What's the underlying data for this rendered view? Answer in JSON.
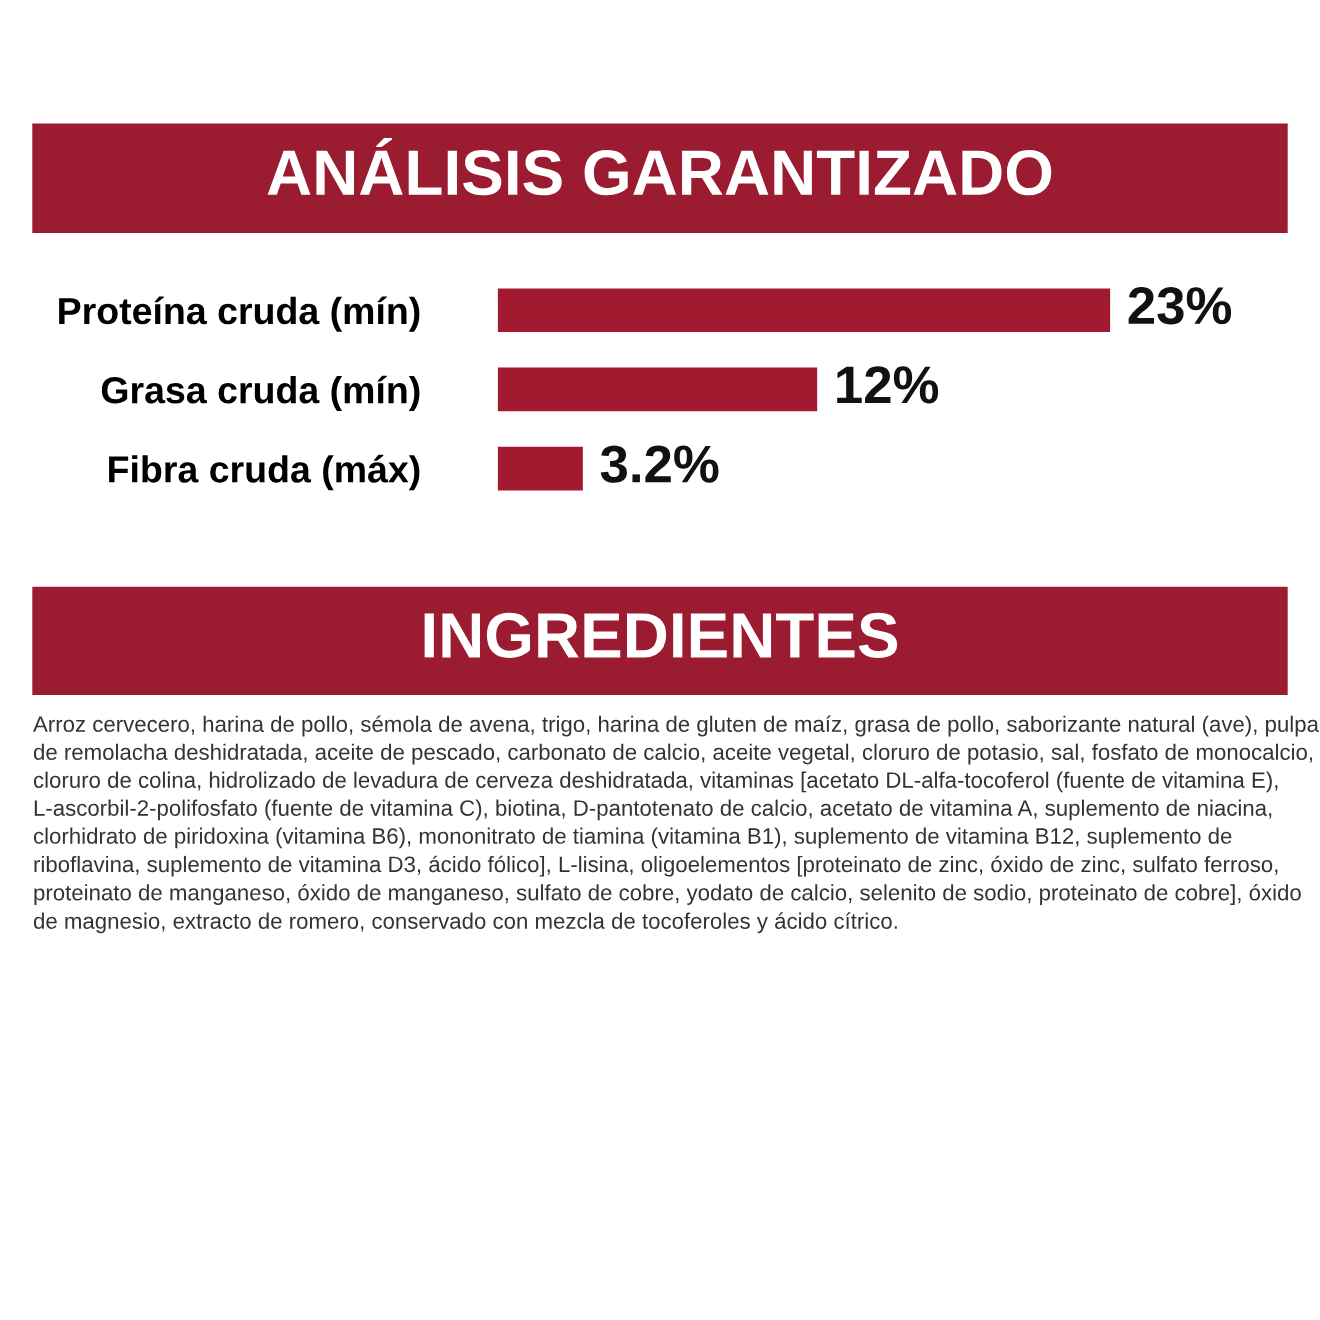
{
  "chart_data": {
    "type": "bar",
    "orientation": "horizontal",
    "title": "ANÁLISIS GARANTIZADO",
    "categories": [
      "Proteína cruda (mín)",
      "Grasa cruda (mín)",
      "Fibra cruda (máx)"
    ],
    "values": [
      23,
      12,
      3.2
    ],
    "value_labels": [
      "23%",
      "12%",
      "3.2%"
    ],
    "color": "#a11a2f",
    "tick_labels": "y",
    "annotations": [
      "INGREDIENTES",
      "Arroz cervecero, harina de pollo, sémola de avena, trigo, harina de gluten de maíz, grasa de pollo, saborizante natural (ave), pulpa de remolacha deshidratada, aceite de pescado, carbonato de calcio, aceite vegetal, cloruro de potasio, sal, fosfato de monocalcio, cloruro de colina, hidrolizado de levadura de cerveza deshidratada, vitaminas [acetato DL-alfa-tocoferol (fuente de vitamina E), L-ascorbil-2-polifosfato (fuente de vitamina C), biotina, D-pantotenato de calcio, acetato de vitamina A, suplemento de niacina, clorhidrato de piridoxina (vitamina B6), mononitrato de tiamina (vitamina B1), suplemento de vitamina B12, suplemento de riboflavina, suplemento de vitamina D3, ácido fólico], L-lisina, oligoelementos [proteinato de zinc, óxido de zinc, sulfato ferroso, proteinato de manganeso, óxido de manganeso, sulfato de cobre, yodato de calcio, selenito de sodio, proteinato de cobre], óxido de magnesio, extracto de romero, conservado con mezcla de tocoferoles y ácido cítrico."
    ],
    "grid": false,
    "legend": false
  }
}
